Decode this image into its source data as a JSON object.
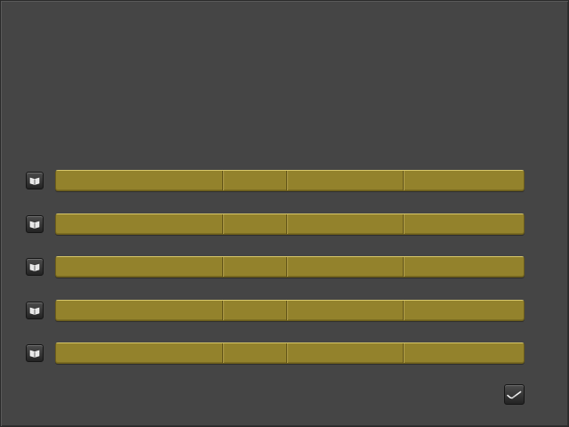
{
  "window": {
    "background_color": "#454545"
  },
  "rows": [
    {
      "icon": "open-book-icon",
      "cells": [
        "",
        "",
        "",
        ""
      ]
    },
    {
      "icon": "open-book-icon",
      "cells": [
        "",
        "",
        "",
        ""
      ]
    },
    {
      "icon": "open-book-icon",
      "cells": [
        "",
        "",
        "",
        ""
      ]
    },
    {
      "icon": "open-book-icon",
      "cells": [
        "",
        "",
        "",
        ""
      ]
    },
    {
      "icon": "open-book-icon",
      "cells": [
        "",
        "",
        "",
        ""
      ]
    }
  ],
  "bar_color": "#93822c",
  "confirm_button": {
    "icon": "checkmark-icon"
  }
}
